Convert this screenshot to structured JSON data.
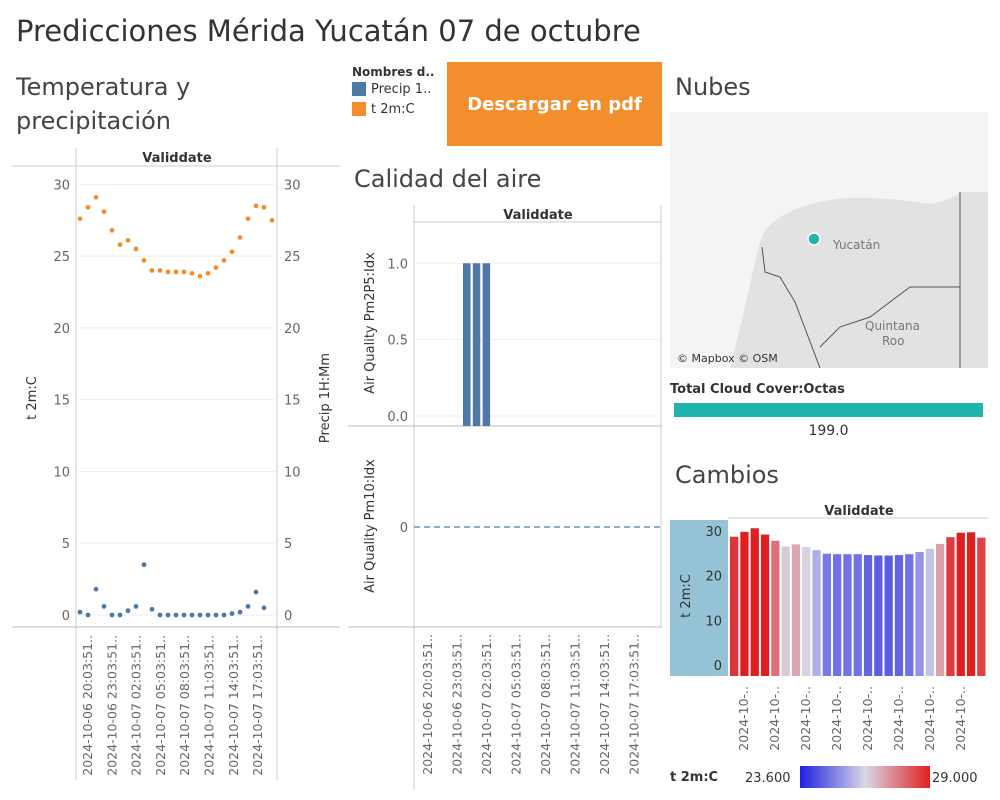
{
  "page": {
    "title": "Predicciones Mérida Yucatán 07 de octubre"
  },
  "sections": {
    "temp_line1": "Temperatura y",
    "temp_line2": "precipitación",
    "air": "Calidad del aire",
    "clouds": "Nubes",
    "changes": "Cambios"
  },
  "legend": {
    "title": "Nombres d..",
    "items": [
      {
        "label": "Precip 1..",
        "color": "#4e79a7"
      },
      {
        "label": "t 2m:C",
        "color": "#f28e2b"
      }
    ]
  },
  "download_button": {
    "label": "Descargar en pdf"
  },
  "map": {
    "label": "Yucatán",
    "label2": "Quintana",
    "label3": "Roo",
    "attribution": "© Mapbox © OSM",
    "marker_color": "#1fb5ad"
  },
  "cloud_cover": {
    "label": "Total Cloud Cover:Octas",
    "value": "199.0",
    "color": "#1fb5ad"
  },
  "color_scale": {
    "label": "t 2m:C",
    "min": "23.600",
    "max": "29.000"
  },
  "chart_data": [
    {
      "type": "scatter",
      "title": "Temperatura y precipitación",
      "header": "Validdate",
      "ylabel": "t 2m:C",
      "ylabel_right": "Precip 1H:Mm",
      "ylim": [
        0,
        31
      ],
      "yticks": [
        "0",
        "5",
        "10",
        "15",
        "20",
        "25",
        "30"
      ],
      "xticks": [
        "2024-10-06 20:03:51..",
        "2024-10-06 23:03:51..",
        "2024-10-07 02:03:51..",
        "2024-10-07 05:03:51..",
        "2024-10-07 08:03:51..",
        "2024-10-07 11:03:51..",
        "2024-10-07 14:03:51..",
        "2024-10-07 17:03:51.."
      ],
      "series": [
        {
          "name": "t 2m:C",
          "color": "#f28e2b",
          "values": [
            27.6,
            28.4,
            29.1,
            28.1,
            26.8,
            25.8,
            26.1,
            25.5,
            24.7,
            24.0,
            24.0,
            23.9,
            23.9,
            23.9,
            23.8,
            23.6,
            23.8,
            24.2,
            24.7,
            25.3,
            26.3,
            27.6,
            28.5,
            28.4,
            27.5
          ]
        },
        {
          "name": "Precip 1H:Mm",
          "color": "#4e79a7",
          "values": [
            0.2,
            0.0,
            1.8,
            0.6,
            0.0,
            0.0,
            0.3,
            0.6,
            3.5,
            0.4,
            0.0,
            0.0,
            0.0,
            0.0,
            0.0,
            0.0,
            0.0,
            0.0,
            0.0,
            0.1,
            0.2,
            0.6,
            1.6,
            0.5
          ]
        }
      ]
    },
    {
      "type": "bar",
      "title": "Calidad del aire",
      "header": "Validdate",
      "ylabel": "Air Quality Pm2P5:Idx",
      "ylim": [
        0,
        1.1
      ],
      "yticks": [
        "0.0",
        "0.5",
        "1.0"
      ],
      "values": [
        0,
        0,
        0,
        1,
        1,
        1,
        0,
        0,
        0,
        0,
        0,
        0,
        0,
        0,
        0,
        0,
        0,
        0,
        0,
        0,
        0,
        0,
        0,
        0
      ],
      "color": "#4e79a7"
    },
    {
      "type": "line",
      "ylabel": "Air Quality Pm10:Idx",
      "yticks": [
        "0"
      ],
      "values": [
        0,
        0,
        0,
        0,
        0,
        0,
        0,
        0,
        0,
        0,
        0,
        0,
        0,
        0,
        0,
        0,
        0,
        0,
        0,
        0,
        0,
        0,
        0,
        0
      ],
      "xticks": [
        "2024-10-06 20:03:51..",
        "2024-10-06 23:03:51..",
        "2024-10-07 02:03:51..",
        "2024-10-07 05:03:51..",
        "2024-10-07 08:03:51..",
        "2024-10-07 11:03:51..",
        "2024-10-07 14:03:51..",
        "2024-10-07 17:03:51.."
      ]
    },
    {
      "type": "bar",
      "title": "Cambios",
      "header": "Validdate",
      "ylabel": "t 2m:C",
      "ylim": [
        0,
        32
      ],
      "yticks": [
        "0",
        "10",
        "20",
        "30"
      ],
      "xticks": [
        "2024-10-..",
        "2024-10-..",
        "2024-10-..",
        "2024-10-..",
        "2024-10-..",
        "2024-10-..",
        "2024-10-..",
        "2024-10-.."
      ],
      "values": [
        28.7,
        29.8,
        30.6,
        29.2,
        27.8,
        26.5,
        27.0,
        26.4,
        25.7,
        24.9,
        24.8,
        24.8,
        24.8,
        24.6,
        24.5,
        24.5,
        24.6,
        24.8,
        25.3,
        26.0,
        27.1,
        28.6,
        29.6,
        29.7,
        28.5
      ]
    }
  ]
}
